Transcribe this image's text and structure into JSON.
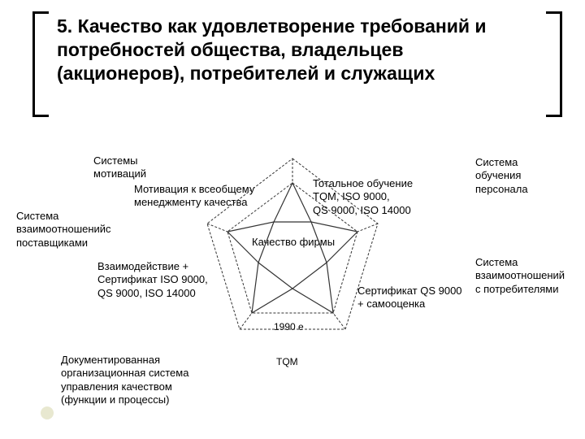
{
  "title": "5. Качество как удовлетворение требований и потребностей общества, владельцев (акционеров), потребителей и служащих",
  "labels": {
    "top_left": "Системы\nмотиваций",
    "top_mid": "Мотивация к всеобщему\nменеджменту  качества",
    "top_right_inner": "Тотальное обучение\nTQM, ISO 9000,\nQS 9000, ISO 14000",
    "top_right": "Система\nобучения\nперсонала",
    "left": "Система\nвзаимоотношенийс\nпоставщиками",
    "mid_left": "Взаимодействие +\nСертификат ISO 9000,\nQS 9000, ISO 14000",
    "mid_right": "Сертификат QS 9000\n+ самооценка",
    "right": "Система\nвзаимоотношений\nс потребителями",
    "bottom_left": "Документированная\nорганизационная система\nуправления качеством\n(функции и процессы)",
    "center": "Качество фирмы",
    "year": "1990 е",
    "tqm": "TQM"
  },
  "diagram": {
    "type": "star-pentagon",
    "stroke_color": "#333333",
    "background_color": "#ffffff"
  }
}
